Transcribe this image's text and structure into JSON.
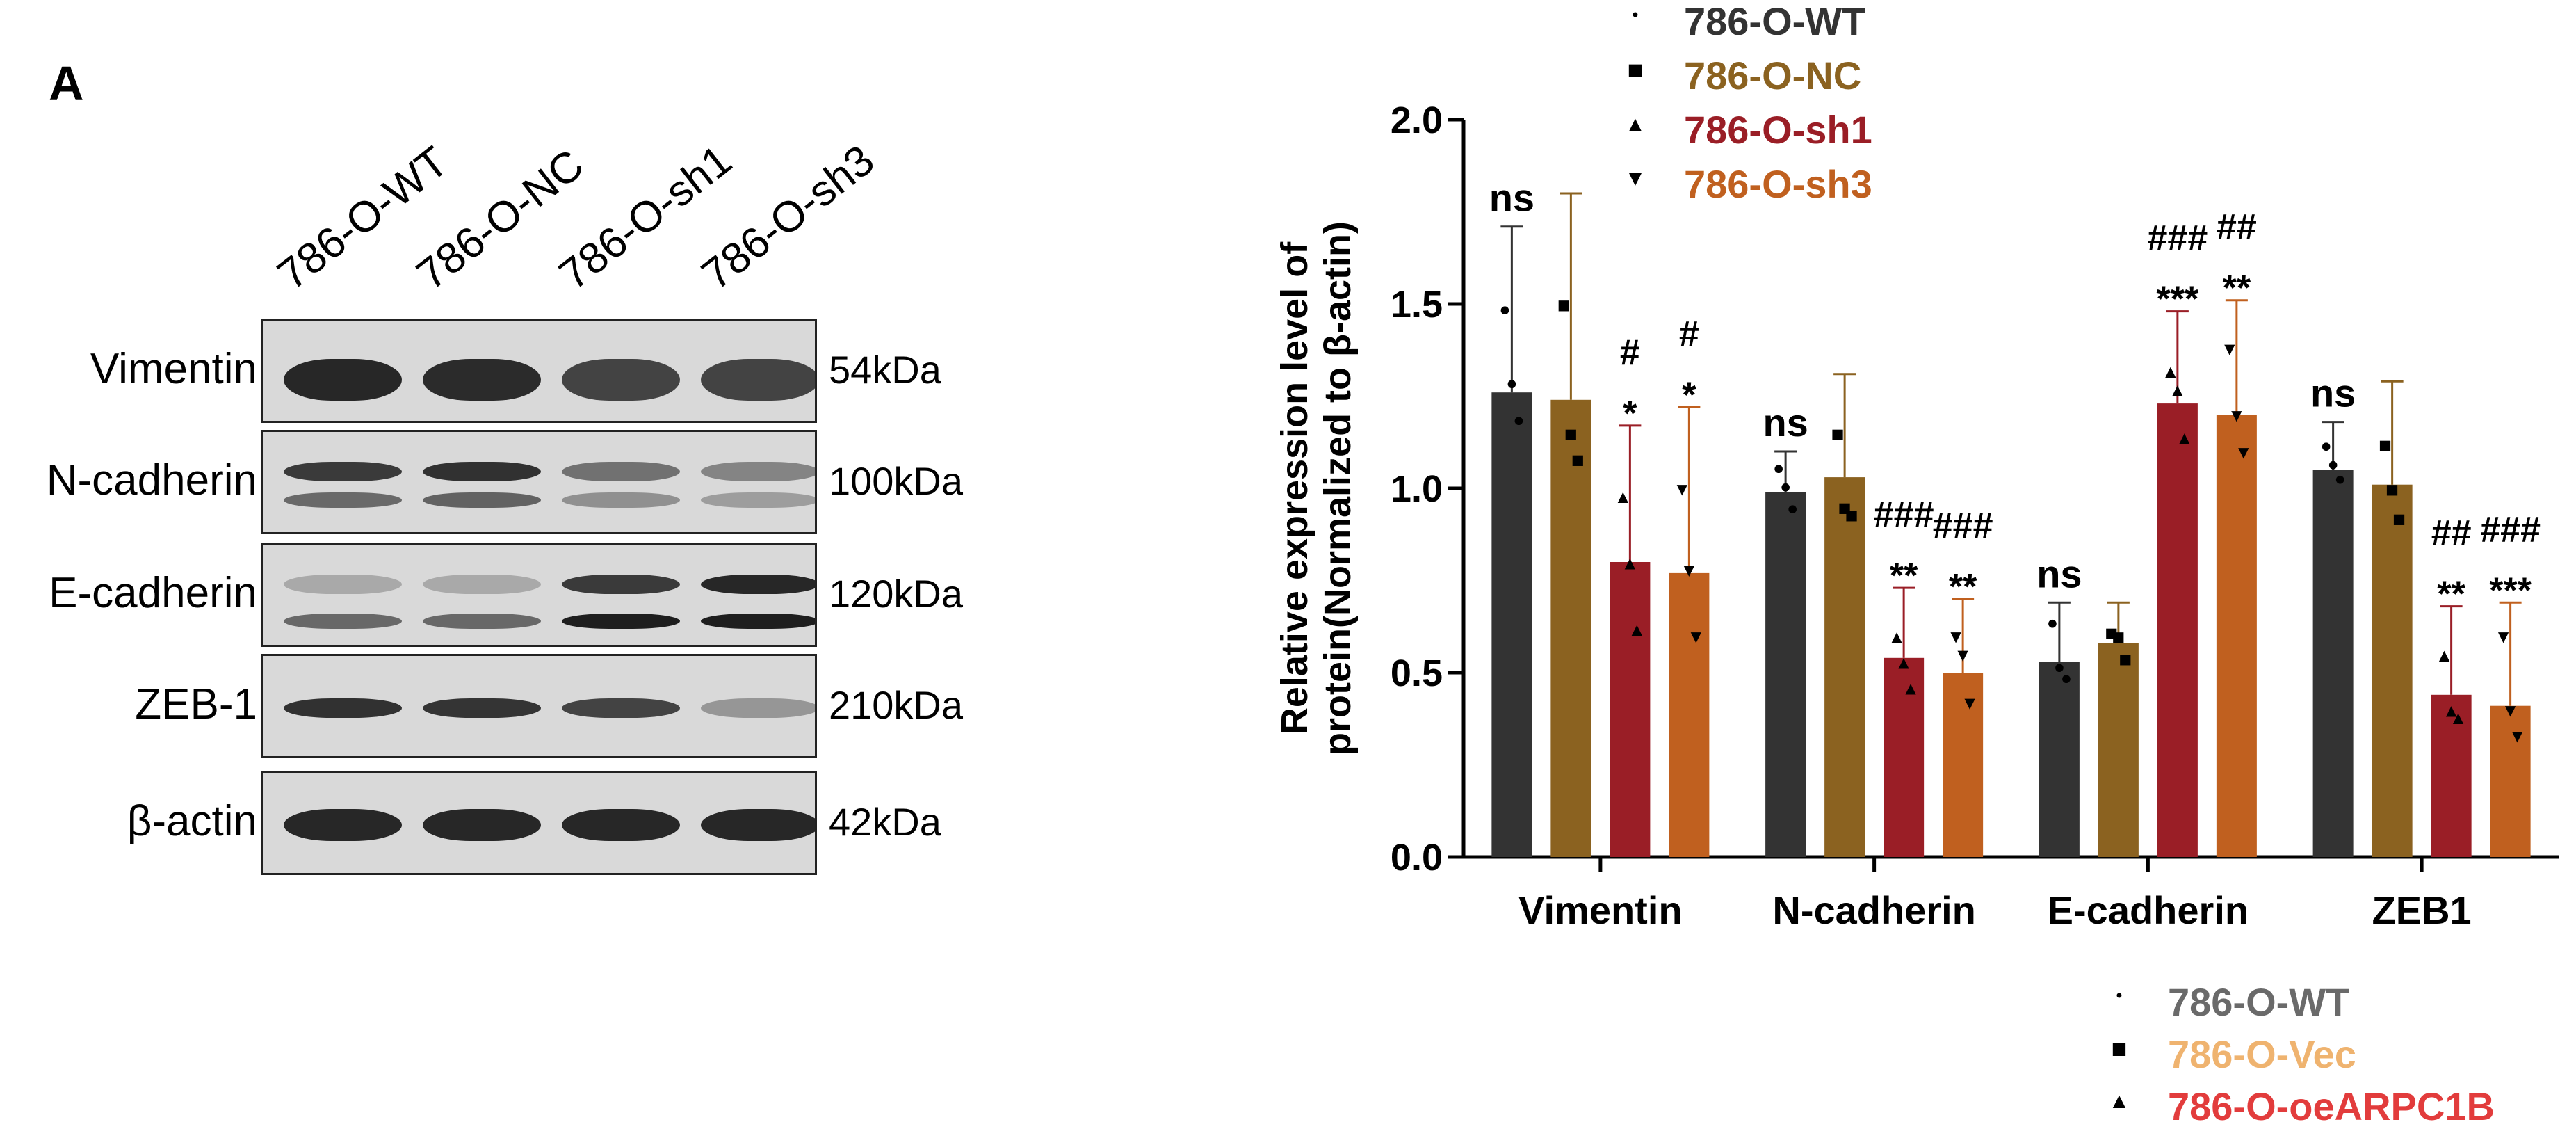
{
  "panel_label": "A",
  "blot": {
    "lanes": [
      "786-O-WT",
      "786-O-NC",
      "786-O-sh1",
      "786-O-sh3"
    ],
    "rows": [
      {
        "protein": "Vimentin",
        "kda": "54kDa",
        "intensity": [
          0.95,
          0.93,
          0.8,
          0.8
        ]
      },
      {
        "protein": "N-cadherin",
        "kda": "100kDa",
        "intensity": [
          0.85,
          0.9,
          0.55,
          0.45
        ]
      },
      {
        "protein": "E-cadherin",
        "kda": "120kDa",
        "intensity": [
          0.25,
          0.25,
          0.85,
          0.95
        ]
      },
      {
        "protein": "ZEB-1",
        "kda": "210kDa",
        "intensity": [
          0.9,
          0.88,
          0.8,
          0.35
        ]
      },
      {
        "protein": "β-actin",
        "kda": "42kDa",
        "intensity": [
          0.95,
          0.95,
          0.95,
          0.95
        ]
      }
    ]
  },
  "chart_data": {
    "type": "bar",
    "title": "",
    "ylabel": "Relative expression level of protein(Normalized to β-actin)",
    "xlabel": "",
    "ylim": [
      0,
      2.0
    ],
    "yticks": [
      "0.0",
      "0.5",
      "1.0",
      "1.5",
      "2.0"
    ],
    "categories": [
      "Vimentin",
      "N-cadherin",
      "E-cadherin",
      "ZEB1"
    ],
    "series": [
      {
        "name": "786-O-WT",
        "color": "#333333",
        "marker": "•",
        "values": [
          1.26,
          0.99,
          0.53,
          1.05
        ],
        "errors": [
          0.45,
          0.11,
          0.16,
          0.13
        ],
        "points": [
          [
            1.47,
            1.27,
            1.17
          ],
          [
            1.04,
            0.99,
            0.93
          ],
          [
            0.62,
            0.5,
            0.47
          ],
          [
            1.1,
            1.05,
            1.01
          ]
        ]
      },
      {
        "name": "786-O-NC",
        "color": "#8b6220",
        "marker": "■",
        "values": [
          1.24,
          1.03,
          0.58,
          1.01
        ],
        "errors": [
          0.56,
          0.28,
          0.11,
          0.28
        ],
        "points": [
          [
            1.5,
            1.15,
            1.08
          ],
          [
            1.15,
            0.95,
            0.93
          ],
          [
            0.61,
            0.6,
            0.54
          ],
          [
            1.12,
            1.0,
            0.92
          ]
        ]
      },
      {
        "name": "786-O-sh1",
        "color": "#9a1e26",
        "marker": "▲",
        "values": [
          0.8,
          0.54,
          1.23,
          0.44
        ],
        "errors": [
          0.37,
          0.19,
          0.25,
          0.24
        ],
        "points": [
          [
            0.98,
            0.8,
            0.62
          ],
          [
            0.6,
            0.53,
            0.46
          ],
          [
            1.32,
            1.27,
            1.14
          ],
          [
            0.55,
            0.4,
            0.38
          ]
        ]
      },
      {
        "name": "786-O-sh3",
        "color": "#c0601f",
        "marker": "▼",
        "values": [
          0.77,
          0.5,
          1.2,
          0.41
        ],
        "errors": [
          0.45,
          0.2,
          0.31,
          0.28
        ],
        "points": [
          [
            1.0,
            0.78,
            0.6
          ],
          [
            0.6,
            0.55,
            0.42
          ],
          [
            1.38,
            1.2,
            1.1
          ],
          [
            0.6,
            0.4,
            0.33
          ]
        ]
      }
    ],
    "annotations": [
      {
        "category": 0,
        "series": 0,
        "lines": [
          "ns"
        ]
      },
      {
        "category": 0,
        "series": 2,
        "lines": [
          "#",
          "*"
        ]
      },
      {
        "category": 0,
        "series": 3,
        "lines": [
          "#",
          "*"
        ]
      },
      {
        "category": 1,
        "series": 0,
        "lines": [
          "ns"
        ]
      },
      {
        "category": 1,
        "series": 2,
        "lines": [
          "###",
          "**"
        ]
      },
      {
        "category": 1,
        "series": 3,
        "lines": [
          "###",
          "**"
        ]
      },
      {
        "category": 2,
        "series": 0,
        "lines": [
          "ns"
        ]
      },
      {
        "category": 2,
        "series": 2,
        "lines": [
          "###",
          "***"
        ]
      },
      {
        "category": 2,
        "series": 3,
        "lines": [
          "##",
          "**"
        ]
      },
      {
        "category": 3,
        "series": 0,
        "lines": [
          "ns"
        ]
      },
      {
        "category": 3,
        "series": 2,
        "lines": [
          "##",
          "**"
        ]
      },
      {
        "category": 3,
        "series": 3,
        "lines": [
          "###",
          "***"
        ]
      }
    ],
    "legend_top": [
      {
        "label": "786-O-WT",
        "color": "#333333",
        "marker": "•"
      },
      {
        "label": "786-O-NC",
        "color": "#8b6220",
        "marker": "■"
      },
      {
        "label": "786-O-sh1",
        "color": "#9a1e26",
        "marker": "▲"
      },
      {
        "label": "786-O-sh3",
        "color": "#c0601f",
        "marker": "▼"
      }
    ],
    "legend_bottom": [
      {
        "label": "786-O-WT",
        "color": "#6a6a6a",
        "marker": "•"
      },
      {
        "label": "786-O-Vec",
        "color": "#efb36f",
        "marker": "■"
      },
      {
        "label": "786-O-oeARPC1B",
        "color": "#e23c3c",
        "marker": "▲"
      }
    ]
  }
}
